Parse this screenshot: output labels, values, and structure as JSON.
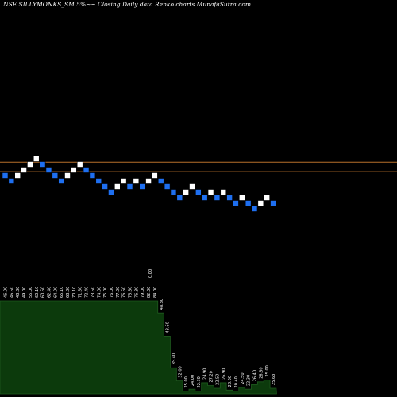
{
  "chart_data": {
    "type": "renko",
    "title": "NSE SILLYMONKS_SM 5%~~ Closing Daily data Renko  charts MunafaSutra.com",
    "colors": {
      "background": "#000000",
      "up_brick": "#ffffff",
      "down_brick": "#1e6ff0",
      "price_line": "#b8702a",
      "volume_fill": "#0c3a0c",
      "volume_edge": "#1e5a1e",
      "label": "#ffffff"
    },
    "bricks": [
      -1,
      -1,
      1,
      1,
      1,
      1,
      -1,
      -1,
      -1,
      -1,
      1,
      1,
      1,
      -1,
      -1,
      -1,
      -1,
      -1,
      1,
      1,
      -1,
      1,
      -1,
      1,
      1,
      -1,
      -1,
      -1,
      -1,
      1,
      1,
      -1,
      -1,
      1,
      -1,
      1,
      -1,
      -1,
      1,
      -1,
      -1,
      1,
      1,
      -1
    ],
    "price_lines": [
      -0.3,
      1.4
    ],
    "volume_labels": [
      "46.00",
      "46.50",
      "48.80",
      "49.00",
      "55.00",
      "60.10",
      "60.50",
      "62.40",
      "64.00",
      "65.10",
      "68.30",
      "70.10",
      "71.50",
      "72.40",
      "73.50",
      "74.00",
      "75.00",
      "76.00",
      "77.00",
      "76.50",
      "75.80",
      "76.80",
      "79.00",
      "82.00",
      "84.00",
      "48.80",
      "43.60",
      "35.40",
      "32.00",
      "25.00",
      "24.00",
      "22.30",
      "24.90",
      "27.20",
      "22.50",
      "26.90",
      "23.00",
      "20.40",
      "24.50",
      "22.30",
      "26.40",
      "28.80",
      "25.00",
      "25.63"
    ],
    "volume_values": [
      1.0,
      1.0,
      1.0,
      1.0,
      1.0,
      1.0,
      1.0,
      1.0,
      1.0,
      1.0,
      1.0,
      1.0,
      1.0,
      1.0,
      1.0,
      1.0,
      1.0,
      1.0,
      1.0,
      1.0,
      1.0,
      1.0,
      1.0,
      1.0,
      1.0,
      0.87,
      0.62,
      0.28,
      0.14,
      0.03,
      0.05,
      0.03,
      0.12,
      0.09,
      0.06,
      0.12,
      0.04,
      0.03,
      0.07,
      0.05,
      0.1,
      0.13,
      0.15,
      0.06
    ],
    "extra_volume_label": "0.00"
  }
}
